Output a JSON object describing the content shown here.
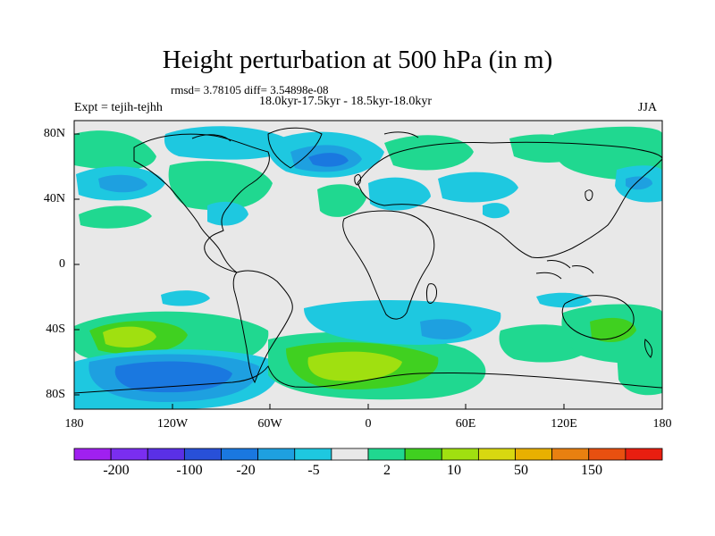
{
  "title": "Height perturbation at 500 hPa (in m)",
  "stats_line": "rmsd= 3.78105 diff= 3.54898e-08",
  "periods_line": "18.0kyr-17.5kyr - 18.5kyr-18.0kyr",
  "experiment_label": "Expt = tejih-tejhh",
  "season_label": "JJA",
  "chart_data": {
    "type": "heatmap",
    "title": "Height perturbation at 500 hPa (in m)",
    "x_ticks": [
      "180",
      "120W",
      "60W",
      "0",
      "60E",
      "120E",
      "180"
    ],
    "y_ticks": [
      "80N",
      "40N",
      "0",
      "40S",
      "80S"
    ],
    "xlim": [
      -180,
      180
    ],
    "ylim": [
      -90,
      90
    ],
    "colorbar": {
      "tick_labels": [
        "-200",
        "-100",
        "-20",
        "-5",
        "2",
        "10",
        "50",
        "150"
      ],
      "colors": [
        "#a020f0",
        "#7a2ef0",
        "#5a30e6",
        "#2850d8",
        "#1a78e0",
        "#1ea0e0",
        "#1ec8e0",
        "#e8e8e8",
        "#20d890",
        "#40d020",
        "#a0e010",
        "#d8d810",
        "#e8b000",
        "#e88010",
        "#e85010",
        "#e81e10"
      ]
    },
    "anomaly_regions": [
      {
        "lon": -175,
        "lat": 62,
        "value": 5,
        "sign": "positive"
      },
      {
        "lon": -160,
        "lat": 35,
        "value": -5,
        "sign": "negative"
      },
      {
        "lon": -150,
        "lat": 20,
        "value": 5,
        "sign": "positive"
      },
      {
        "lon": -110,
        "lat": 72,
        "value": -5,
        "sign": "negative"
      },
      {
        "lon": -100,
        "lat": 50,
        "value": 5,
        "sign": "positive"
      },
      {
        "lon": -85,
        "lat": 27,
        "value": -5,
        "sign": "negative"
      },
      {
        "lon": -30,
        "lat": 65,
        "value": -20,
        "sign": "negative"
      },
      {
        "lon": -25,
        "lat": 40,
        "value": 10,
        "sign": "positive"
      },
      {
        "lon": 20,
        "lat": 68,
        "value": 5,
        "sign": "positive"
      },
      {
        "lon": 20,
        "lat": 42,
        "value": -5,
        "sign": "negative"
      },
      {
        "lon": 80,
        "lat": 45,
        "value": -5,
        "sign": "negative"
      },
      {
        "lon": 150,
        "lat": 60,
        "value": 5,
        "sign": "positive"
      },
      {
        "lon": 160,
        "lat": 35,
        "value": -5,
        "sign": "negative"
      },
      {
        "lon": -140,
        "lat": -40,
        "value": 20,
        "sign": "positive"
      },
      {
        "lon": -100,
        "lat": -65,
        "value": -20,
        "sign": "negative"
      },
      {
        "lon": -10,
        "lat": -65,
        "value": 20,
        "sign": "positive"
      },
      {
        "lon": 45,
        "lat": -40,
        "value": -5,
        "sign": "negative"
      },
      {
        "lon": 110,
        "lat": -40,
        "value": 5,
        "sign": "positive"
      },
      {
        "lon": 150,
        "lat": -60,
        "value": 5,
        "sign": "positive"
      }
    ]
  }
}
